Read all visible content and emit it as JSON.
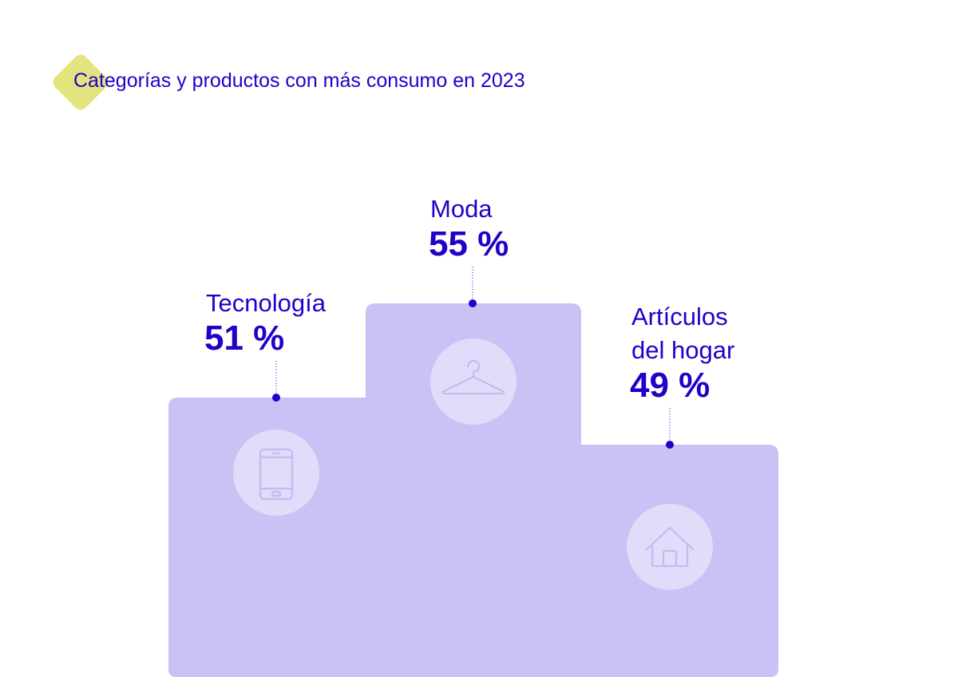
{
  "title": "Categorías y productos con más consumo en 2023",
  "colors": {
    "accent": "#2200c9",
    "podium": "#c8c2f5",
    "icon_circle": "#e0dcfa",
    "icon_stroke": "#c3bdf0",
    "title_mark": "#e2e57e"
  },
  "chart_data": {
    "type": "bar",
    "title": "Categorías y productos con más consumo en 2023",
    "unit": "%",
    "categories": [
      "Tecnología",
      "Moda",
      "Artículos del hogar"
    ],
    "values": [
      51,
      55,
      49
    ],
    "value_labels": [
      "51 %",
      "55 %",
      "49 %"
    ],
    "category_labels": [
      [
        "Tecnología"
      ],
      [
        "Moda"
      ],
      [
        "Artículos",
        "del hogar"
      ]
    ],
    "icons": [
      "smartphone-icon",
      "hanger-icon",
      "house-icon"
    ],
    "grid": false,
    "legend": "none"
  }
}
